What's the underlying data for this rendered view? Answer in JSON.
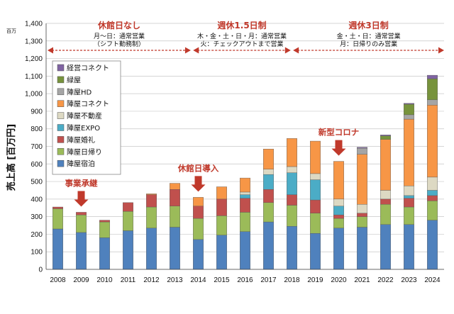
{
  "chart_data": {
    "type": "bar",
    "stacked": true,
    "unit_label": "百万",
    "ylabel": "売上高 [百万円]",
    "ylim": [
      0,
      1400
    ],
    "ytick_step": 100,
    "grid": true,
    "legend_position": "top-left",
    "categories": [
      "2008",
      "2009",
      "2010",
      "2011",
      "2012",
      "2013",
      "2014",
      "2015",
      "2016",
      "2017",
      "2018",
      "2019",
      "2020",
      "2021",
      "2022",
      "2023",
      "2024"
    ],
    "series": [
      {
        "name": "陣屋宿泊",
        "color": "#4f81bd",
        "values": [
          230,
          210,
          180,
          220,
          235,
          240,
          170,
          195,
          215,
          270,
          245,
          205,
          235,
          240,
          255,
          255,
          280
        ]
      },
      {
        "name": "陣屋日帰り",
        "color": "#9bbb59",
        "values": [
          115,
          100,
          90,
          110,
          120,
          120,
          120,
          110,
          110,
          110,
          120,
          115,
          55,
          60,
          115,
          100,
          110
        ]
      },
      {
        "name": "陣屋婚礼",
        "color": "#c0504d",
        "values": [
          10,
          15,
          10,
          50,
          70,
          95,
          70,
          95,
          80,
          75,
          60,
          75,
          20,
          20,
          30,
          50,
          30
        ]
      },
      {
        "name": "陣屋EXPO",
        "color": "#4bacc6",
        "values": [
          0,
          0,
          0,
          0,
          0,
          0,
          0,
          0,
          20,
          85,
          125,
          115,
          50,
          0,
          0,
          15,
          30
        ]
      },
      {
        "name": "陣屋不動産",
        "color": "#ddd9c3",
        "values": [
          0,
          0,
          0,
          0,
          0,
          0,
          0,
          0,
          15,
          30,
          35,
          35,
          40,
          50,
          50,
          55,
          75
        ]
      },
      {
        "name": "陣屋コネクト",
        "color": "#f79646",
        "values": [
          0,
          0,
          0,
          0,
          5,
          35,
          50,
          70,
          80,
          115,
          160,
          185,
          215,
          285,
          290,
          380,
          410
        ]
      },
      {
        "name": "陣屋HD",
        "color": "#a5a5a5",
        "values": [
          0,
          0,
          0,
          0,
          0,
          0,
          0,
          0,
          0,
          0,
          0,
          0,
          0,
          35,
          0,
          25,
          30
        ]
      },
      {
        "name": "緑屋",
        "color": "#77933c",
        "values": [
          0,
          0,
          0,
          0,
          0,
          0,
          0,
          0,
          0,
          0,
          0,
          0,
          0,
          0,
          20,
          60,
          120
        ]
      },
      {
        "name": "経営コネクト",
        "color": "#8064a2",
        "values": [
          0,
          0,
          0,
          0,
          0,
          0,
          0,
          0,
          0,
          0,
          0,
          0,
          0,
          5,
          5,
          5,
          20
        ]
      }
    ],
    "phases": [
      {
        "title": "休館日なし",
        "sub1": "月～日：通常営業",
        "sub2": "（シフト勤務制）"
      },
      {
        "title": "週休1.5日制",
        "sub1": "木・金・土・日・月：通常営業",
        "sub2": "火：チェックアウトまで営業"
      },
      {
        "title": "週休3日制",
        "sub1": "金・土・日：通常営業",
        "sub2": "月：日帰りのみ営業"
      }
    ],
    "annotations": [
      {
        "text": "事業承継",
        "category": "2009"
      },
      {
        "text": "休館日導入",
        "category": "2014"
      },
      {
        "text": "新型コロナ",
        "category": "2020"
      }
    ]
  }
}
